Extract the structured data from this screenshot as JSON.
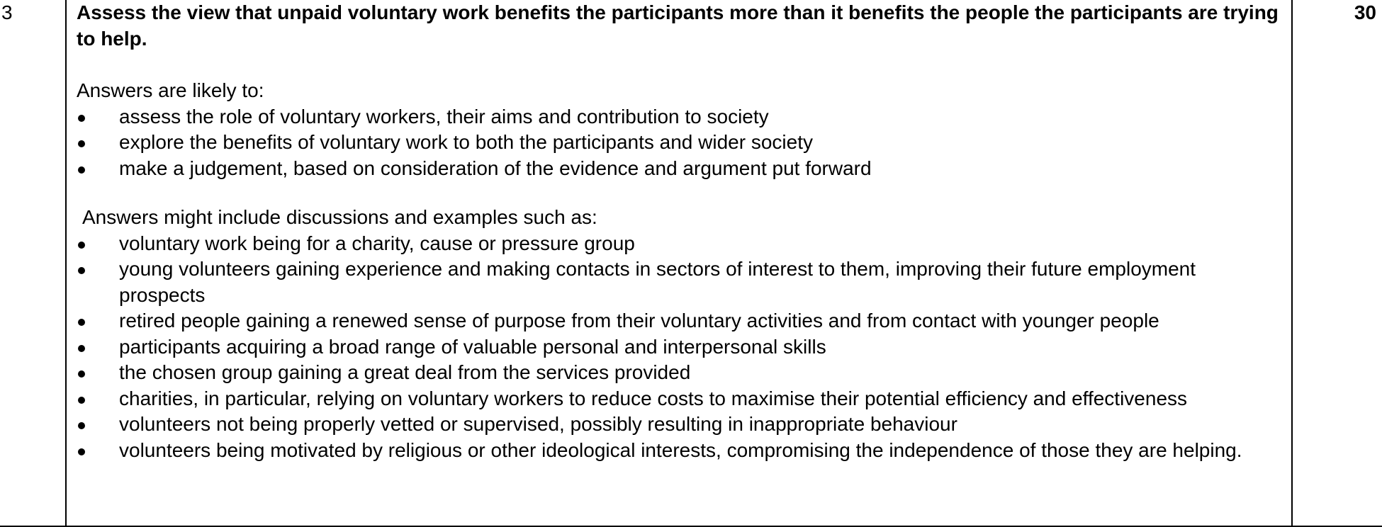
{
  "row": {
    "number": "3",
    "marks": "30",
    "question": "Assess the view that unpaid voluntary work benefits the participants more than it benefits the people the participants are trying to help.",
    "intro_likely": "Answers are likely to:",
    "likely_points": [
      "assess the role of voluntary workers, their aims and contribution to society",
      "explore the benefits of voluntary work to both the participants and wider society",
      "make a judgement, based on consideration of the evidence and argument put forward"
    ],
    "intro_include": "Answers might include discussions and examples such as:",
    "include_points": [
      "voluntary work being for a charity, cause or pressure group",
      "young volunteers gaining experience and making contacts in sectors of interest to them, improving their future employment prospects",
      "retired people gaining a renewed sense of purpose from their voluntary activities and from contact with younger people",
      "participants acquiring a broad range of valuable personal and interpersonal skills",
      "the chosen group gaining a great deal from the services provided",
      "charities, in particular, relying on voluntary workers to reduce costs to maximise their potential efficiency and effectiveness",
      "volunteers not being properly vetted or supervised, possibly resulting in inappropriate behaviour",
      "volunteers being motivated by religious or other ideological interests, compromising the independence of those they are helping."
    ]
  }
}
